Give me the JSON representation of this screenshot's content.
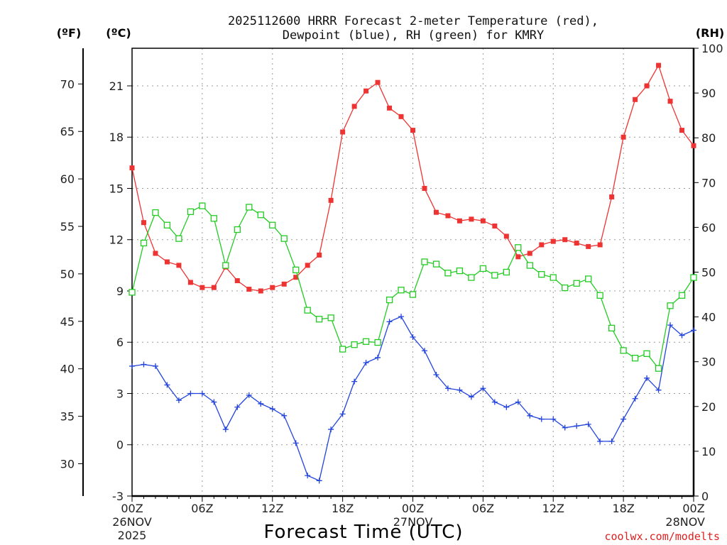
{
  "page": {
    "title_line1": "2025112600 HRRR Forecast 2-meter Temperature (red),",
    "title_line2": "Dewpoint (blue), RH (green) for KMRY",
    "credit": "coolwx.com/modelts"
  },
  "chart_data": {
    "type": "line",
    "title": "2025112600 HRRR Forecast 2-meter Temperature (red), Dewpoint (blue), RH (green) for KMRY",
    "xlabel": "Forecast Time (UTC)",
    "x_start": "2025-11-26 00Z",
    "x_range_hours": [
      0,
      48
    ],
    "x_step_hours": 1,
    "x_ticks": [
      {
        "hour": 0,
        "label": "00Z",
        "sub1": "26NOV",
        "sub2": "2025"
      },
      {
        "hour": 6,
        "label": "06Z",
        "sub1": "",
        "sub2": ""
      },
      {
        "hour": 12,
        "label": "12Z",
        "sub1": "",
        "sub2": ""
      },
      {
        "hour": 18,
        "label": "18Z",
        "sub1": "",
        "sub2": ""
      },
      {
        "hour": 24,
        "label": "00Z",
        "sub1": "27NOV",
        "sub2": ""
      },
      {
        "hour": 30,
        "label": "06Z",
        "sub1": "",
        "sub2": ""
      },
      {
        "hour": 36,
        "label": "12Z",
        "sub1": "",
        "sub2": ""
      },
      {
        "hour": 42,
        "label": "18Z",
        "sub1": "",
        "sub2": ""
      },
      {
        "hour": 48,
        "label": "00Z",
        "sub1": "28NOV",
        "sub2": ""
      }
    ],
    "axes": {
      "fahrenheit": {
        "label": "(ºF)",
        "ticks": [
          "30",
          "35",
          "40",
          "45",
          "50",
          "55",
          "60",
          "65",
          "70"
        ]
      },
      "celsius": {
        "label": "(ºC)",
        "range": [
          -3,
          23.2
        ],
        "ticks": [
          "-3",
          "0",
          "3",
          "6",
          "9",
          "12",
          "15",
          "18",
          "21"
        ]
      },
      "rh": {
        "label": "(RH)",
        "range": [
          0,
          100
        ],
        "ticks": [
          "0",
          "10",
          "20",
          "30",
          "40",
          "50",
          "60",
          "70",
          "80",
          "90",
          "100"
        ]
      }
    },
    "grid": true,
    "series": [
      {
        "key": "temperature",
        "axis": "celsius",
        "color": "#ee3333",
        "marker": "filled-square",
        "values": [
          16.2,
          13.0,
          11.2,
          10.7,
          10.5,
          9.5,
          9.2,
          9.2,
          10.4,
          9.6,
          9.1,
          9.0,
          9.2,
          9.4,
          9.8,
          10.5,
          11.1,
          14.3,
          18.3,
          19.8,
          20.7,
          21.2,
          19.7,
          19.2,
          18.4,
          15.0,
          13.6,
          13.4,
          13.1,
          13.2,
          13.1,
          12.8,
          12.2,
          11.0,
          11.2,
          11.7,
          11.9,
          12.0,
          11.8,
          11.6,
          11.7,
          14.5,
          18.0,
          20.2,
          21.0,
          22.2,
          20.1,
          18.4,
          17.5
        ]
      },
      {
        "key": "dewpoint",
        "axis": "celsius",
        "color": "#2244dd",
        "marker": "plus",
        "values": [
          4.6,
          4.7,
          4.6,
          3.5,
          2.6,
          3.0,
          3.0,
          2.5,
          0.9,
          2.2,
          2.9,
          2.4,
          2.1,
          1.7,
          0.1,
          -1.8,
          -2.1,
          0.9,
          1.8,
          3.7,
          4.8,
          5.1,
          7.2,
          7.5,
          6.3,
          5.5,
          4.1,
          3.3,
          3.2,
          2.8,
          3.3,
          2.5,
          2.2,
          2.5,
          1.7,
          1.5,
          1.5,
          1.0,
          1.1,
          1.2,
          0.2,
          0.2,
          1.5,
          2.7,
          3.9,
          3.2,
          7.0,
          6.4,
          6.7
        ]
      },
      {
        "key": "rh",
        "axis": "rh",
        "color": "#22cc22",
        "marker": "open-square",
        "values": [
          45.5,
          56.5,
          63.3,
          60.5,
          57.5,
          63.5,
          64.8,
          62.0,
          51.5,
          59.5,
          64.5,
          62.8,
          60.5,
          57.5,
          50.5,
          41.5,
          39.5,
          39.8,
          32.8,
          33.8,
          34.5,
          34.3,
          43.8,
          46.0,
          45.0,
          52.3,
          51.8,
          49.8,
          50.3,
          48.8,
          50.8,
          49.3,
          50.0,
          55.5,
          51.5,
          49.5,
          48.8,
          46.5,
          47.5,
          48.5,
          44.8,
          37.5,
          32.5,
          30.8,
          31.8,
          28.5,
          42.5,
          44.8,
          48.8
        ]
      }
    ]
  }
}
